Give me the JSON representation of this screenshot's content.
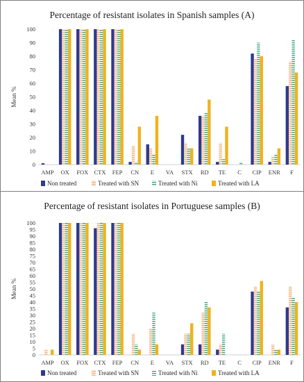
{
  "colors": {
    "Non treated": "#2e3a8f",
    "Treated with SN": "#f2b88a",
    "Treated with Ni": "#3aa57a",
    "Treated with LA": "#f0b21c"
  },
  "chart_data": [
    {
      "type": "bar",
      "title": "Percentage of resistant isolates in Spanish samples (A)",
      "ylabel": "Mean %",
      "ylim": [
        0,
        100
      ],
      "yticks": [
        "0",
        "10",
        "20",
        "30",
        "40",
        "50",
        "60",
        "70",
        "80",
        "90",
        "100"
      ],
      "categories": [
        "AMP",
        "OX",
        "FOX",
        "CTX",
        "FEP",
        "CN",
        "E",
        "VA",
        "STX",
        "RD",
        "TE",
        "C",
        "CIP",
        "ENR",
        "F"
      ],
      "series": [
        {
          "name": "Non treated",
          "values": [
            1,
            100,
            100,
            100,
            100,
            2,
            15,
            0,
            22,
            36,
            2,
            0,
            82,
            2,
            58
          ]
        },
        {
          "name": "Treated with SN",
          "values": [
            0,
            100,
            100,
            100,
            100,
            14,
            12,
            0,
            16,
            36,
            16,
            0,
            78,
            6,
            76
          ]
        },
        {
          "name": "Treated with Ni",
          "values": [
            0,
            100,
            100,
            100,
            100,
            2,
            8,
            0,
            12,
            38,
            4,
            2,
            90,
            8,
            92
          ]
        },
        {
          "name": "Treated with LA",
          "values": [
            0,
            100,
            100,
            100,
            100,
            28,
            36,
            0,
            12,
            48,
            28,
            0,
            80,
            12,
            68
          ]
        }
      ],
      "legend": "bottom"
    },
    {
      "type": "bar",
      "title": "Percentage of resistant isolates in Portuguese samples (B)",
      "ylabel": "Mean %",
      "ylim": [
        0,
        100
      ],
      "yticks": [
        "0",
        "5",
        "10",
        "15",
        "20",
        "25",
        "30",
        "35",
        "40",
        "45",
        "50",
        "55",
        "60",
        "65",
        "70",
        "75",
        "80",
        "85",
        "90",
        "95",
        "100"
      ],
      "categories": [
        "AMP",
        "OX",
        "FOX",
        "CTX",
        "FEP",
        "CN",
        "E",
        "VA",
        "STX",
        "RD",
        "TE",
        "C",
        "CIP",
        "ENR",
        "F"
      ],
      "series": [
        {
          "name": "Non treated",
          "values": [
            0,
            100,
            100,
            96,
            100,
            0,
            0,
            0,
            8,
            8,
            4,
            0,
            48,
            0,
            36
          ]
        },
        {
          "name": "Treated with SN",
          "values": [
            4,
            100,
            100,
            100,
            100,
            16,
            20,
            0,
            16,
            32,
            8,
            0,
            52,
            8,
            52
          ]
        },
        {
          "name": "Treated with Ni",
          "values": [
            0,
            100,
            100,
            100,
            100,
            8,
            32,
            0,
            16,
            40,
            16,
            0,
            48,
            4,
            44
          ]
        },
        {
          "name": "Treated with LA",
          "values": [
            4,
            100,
            100,
            100,
            100,
            4,
            8,
            0,
            24,
            36,
            0,
            0,
            56,
            4,
            40
          ]
        }
      ],
      "legend": "bottom"
    }
  ]
}
